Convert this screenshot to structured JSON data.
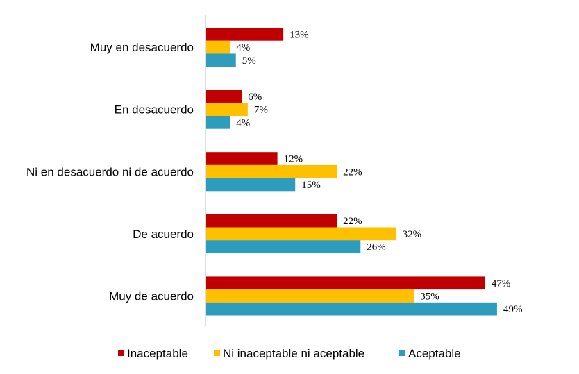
{
  "chart_data": {
    "type": "bar",
    "orientation": "horizontal",
    "title": "",
    "xlabel": "",
    "ylabel": "",
    "xlim": [
      0,
      50
    ],
    "grid": false,
    "legend_position": "bottom",
    "categories": [
      "Muy en desacuerdo",
      "En desacuerdo",
      "Ni en desacuerdo ni de acuerdo",
      "De acuerdo",
      "Muy de acuerdo"
    ],
    "series": [
      {
        "name": "Inaceptable",
        "color": "#C00000",
        "values": [
          13,
          6,
          12,
          22,
          47
        ],
        "labels": [
          "13%",
          "6%",
          "12%",
          "22%",
          "47%"
        ]
      },
      {
        "name": "Ni inaceptable ni aceptable",
        "color": "#FFC000",
        "values": [
          4,
          7,
          22,
          32,
          35
        ],
        "labels": [
          "4%",
          "7%",
          "22%",
          "32%",
          "35%"
        ]
      },
      {
        "name": "Aceptable",
        "color": "#2E9CBD",
        "values": [
          5,
          4,
          15,
          26,
          49
        ],
        "labels": [
          "5%",
          "4%",
          "15%",
          "26%",
          "49%"
        ]
      }
    ]
  }
}
